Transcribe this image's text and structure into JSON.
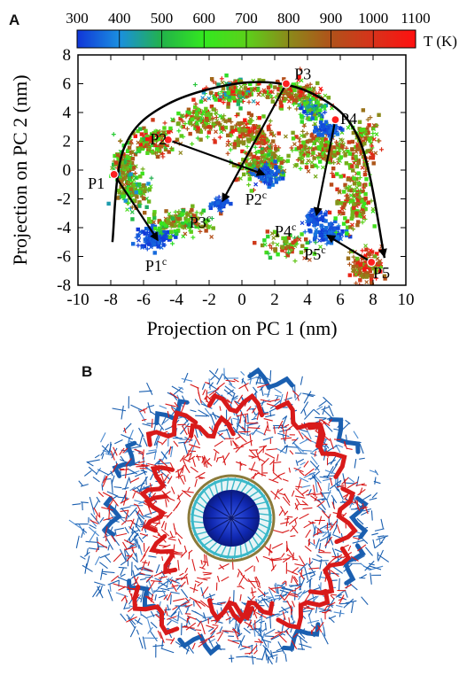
{
  "panels": {
    "a_label": "A",
    "b_label": "B"
  },
  "colorbar": {
    "ticks": [
      "300",
      "400",
      "500",
      "600",
      "700",
      "800",
      "900",
      "1000",
      "1100"
    ],
    "label": "T (K)",
    "colors": [
      "#1036d8",
      "#1a8fe0",
      "#22b24a",
      "#33e81f",
      "#5bd11a",
      "#8b8a1a",
      "#b0521a",
      "#d8321a",
      "#ff1010"
    ]
  },
  "chart_data": {
    "type": "scatter",
    "xlabel": "Projection on PC 1 (nm)",
    "ylabel": "Projection on PC 2 (nm)",
    "xlim": [
      -10,
      10
    ],
    "ylim": [
      -8,
      8
    ],
    "xticks": [
      "-10",
      "-8",
      "-6",
      "-4",
      "-2",
      "0",
      "2",
      "4",
      "6",
      "8",
      "10"
    ],
    "yticks": [
      "-8",
      "-6",
      "-4",
      "-2",
      "0",
      "2",
      "4",
      "6",
      "8"
    ],
    "color_scale": "temperature",
    "grid": false,
    "points": [
      {
        "label": "P1",
        "x": -7.8,
        "y": -0.3,
        "label_x": -9.4,
        "label_y": -1.3
      },
      {
        "label": "P2",
        "x": -4.5,
        "y": 2.1,
        "label_x": -5.6,
        "label_y": 1.8
      },
      {
        "label": "P3",
        "x": 2.7,
        "y": 6.0,
        "label_x": 3.2,
        "label_y": 6.3
      },
      {
        "label": "P4",
        "x": 5.7,
        "y": 3.5,
        "label_x": 6.0,
        "label_y": 3.2
      },
      {
        "label": "P5",
        "x": 7.9,
        "y": -6.4,
        "label_x": 8.0,
        "label_y": -7.5
      }
    ],
    "collapsed_points": [
      {
        "label": "P1",
        "superscript": "c",
        "x": -5.0,
        "y": -5.1,
        "label_x": -5.9,
        "label_y": -7.0
      },
      {
        "label": "P2",
        "superscript": "c",
        "x": 1.6,
        "y": -0.4,
        "label_x": 0.2,
        "label_y": -2.4
      },
      {
        "label": "P3",
        "superscript": "c",
        "x": -1.3,
        "y": -2.4,
        "label_x": -3.2,
        "label_y": -4.0
      },
      {
        "label": "P4",
        "superscript": "c",
        "x": 4.5,
        "y": -3.4,
        "label_x": 2.0,
        "label_y": -4.6
      },
      {
        "label": "P5",
        "superscript": "c",
        "x": 5.0,
        "y": -4.4,
        "label_x": 3.8,
        "label_y": -6.2
      }
    ],
    "arrows": [
      {
        "from": [
          -7.8,
          -0.3
        ],
        "to": [
          -5.0,
          -5.1
        ]
      },
      {
        "from": [
          -4.5,
          2.1
        ],
        "to": [
          1.6,
          -0.4
        ]
      },
      {
        "from": [
          2.7,
          6.0
        ],
        "to": [
          -1.3,
          -2.4
        ]
      },
      {
        "from": [
          5.7,
          3.5
        ],
        "to": [
          4.5,
          -3.4
        ]
      },
      {
        "from": [
          7.9,
          -6.4
        ],
        "to": [
          5.0,
          -4.4
        ]
      }
    ],
    "arc_path": [
      [
        -7.9,
        -5.0
      ],
      [
        -7.2,
        1.5
      ],
      [
        -4.5,
        4.6
      ],
      [
        0.5,
        6.1
      ],
      [
        4.5,
        5.2
      ],
      [
        7.2,
        2.0
      ],
      [
        8.7,
        -6.1
      ]
    ],
    "clusters": [
      {
        "x": -7.2,
        "y": 0.2,
        "sx": 0.6,
        "sy": 1.2,
        "n": 120,
        "t": [
          500,
          1000
        ]
      },
      {
        "x": -6.5,
        "y": -1.5,
        "sx": 0.8,
        "sy": 0.9,
        "n": 120,
        "t": [
          400,
          900
        ]
      },
      {
        "x": -5.6,
        "y": 2.0,
        "sx": 1.3,
        "sy": 0.8,
        "n": 150,
        "t": [
          500,
          1100
        ]
      },
      {
        "x": -5.3,
        "y": -4.7,
        "sx": 0.9,
        "sy": 0.6,
        "n": 140,
        "t": [
          300,
          360
        ]
      },
      {
        "x": -3.8,
        "y": -3.6,
        "sx": 1.6,
        "sy": 0.8,
        "n": 170,
        "t": [
          500,
          950
        ]
      },
      {
        "x": -2.5,
        "y": 3.4,
        "sx": 1.3,
        "sy": 0.9,
        "n": 130,
        "t": [
          550,
          1050
        ]
      },
      {
        "x": -1.3,
        "y": -2.4,
        "sx": 0.4,
        "sy": 0.3,
        "n": 60,
        "t": [
          300,
          360
        ]
      },
      {
        "x": -0.5,
        "y": 5.4,
        "sx": 1.3,
        "sy": 0.7,
        "n": 150,
        "t": [
          400,
          1100
        ]
      },
      {
        "x": 0.5,
        "y": 2.6,
        "sx": 1.4,
        "sy": 1.0,
        "n": 140,
        "t": [
          700,
          1100
        ]
      },
      {
        "x": 1.2,
        "y": 0.4,
        "sx": 1.3,
        "sy": 1.1,
        "n": 200,
        "t": [
          500,
          1000
        ]
      },
      {
        "x": 1.6,
        "y": -0.4,
        "sx": 0.6,
        "sy": 0.5,
        "n": 90,
        "t": [
          300,
          380
        ]
      },
      {
        "x": 3.2,
        "y": 5.3,
        "sx": 1.6,
        "sy": 0.8,
        "n": 160,
        "t": [
          600,
          1100
        ]
      },
      {
        "x": 4.8,
        "y": 1.5,
        "sx": 1.5,
        "sy": 1.1,
        "n": 200,
        "t": [
          600,
          1000
        ]
      },
      {
        "x": 4.3,
        "y": 4.2,
        "sx": 0.8,
        "sy": 0.6,
        "n": 90,
        "t": [
          300,
          800
        ]
      },
      {
        "x": 5.2,
        "y": 2.8,
        "sx": 0.6,
        "sy": 0.4,
        "n": 70,
        "t": [
          300,
          380
        ]
      },
      {
        "x": 4.5,
        "y": -3.4,
        "sx": 0.5,
        "sy": 0.4,
        "n": 70,
        "t": [
          300,
          360
        ]
      },
      {
        "x": 5.3,
        "y": -4.4,
        "sx": 0.8,
        "sy": 0.5,
        "n": 110,
        "t": [
          300,
          380
        ]
      },
      {
        "x": 6.8,
        "y": -2.0,
        "sx": 0.9,
        "sy": 2.2,
        "n": 170,
        "t": [
          600,
          1050
        ]
      },
      {
        "x": 7.5,
        "y": 2.0,
        "sx": 0.7,
        "sy": 1.4,
        "n": 100,
        "t": [
          600,
          1050
        ]
      },
      {
        "x": 7.6,
        "y": -6.6,
        "sx": 0.8,
        "sy": 0.9,
        "n": 130,
        "t": [
          700,
          1100
        ]
      },
      {
        "x": 2.8,
        "y": -5.2,
        "sx": 1.4,
        "sy": 0.8,
        "n": 80,
        "t": [
          500,
          1000
        ]
      }
    ]
  },
  "protein_image": {
    "description_colors": {
      "outer_strands": "#1a5fb0",
      "inner_ribbons": "#d81a1a",
      "core_ring": "#3ab8c8",
      "core_center": "#1030c0"
    }
  }
}
